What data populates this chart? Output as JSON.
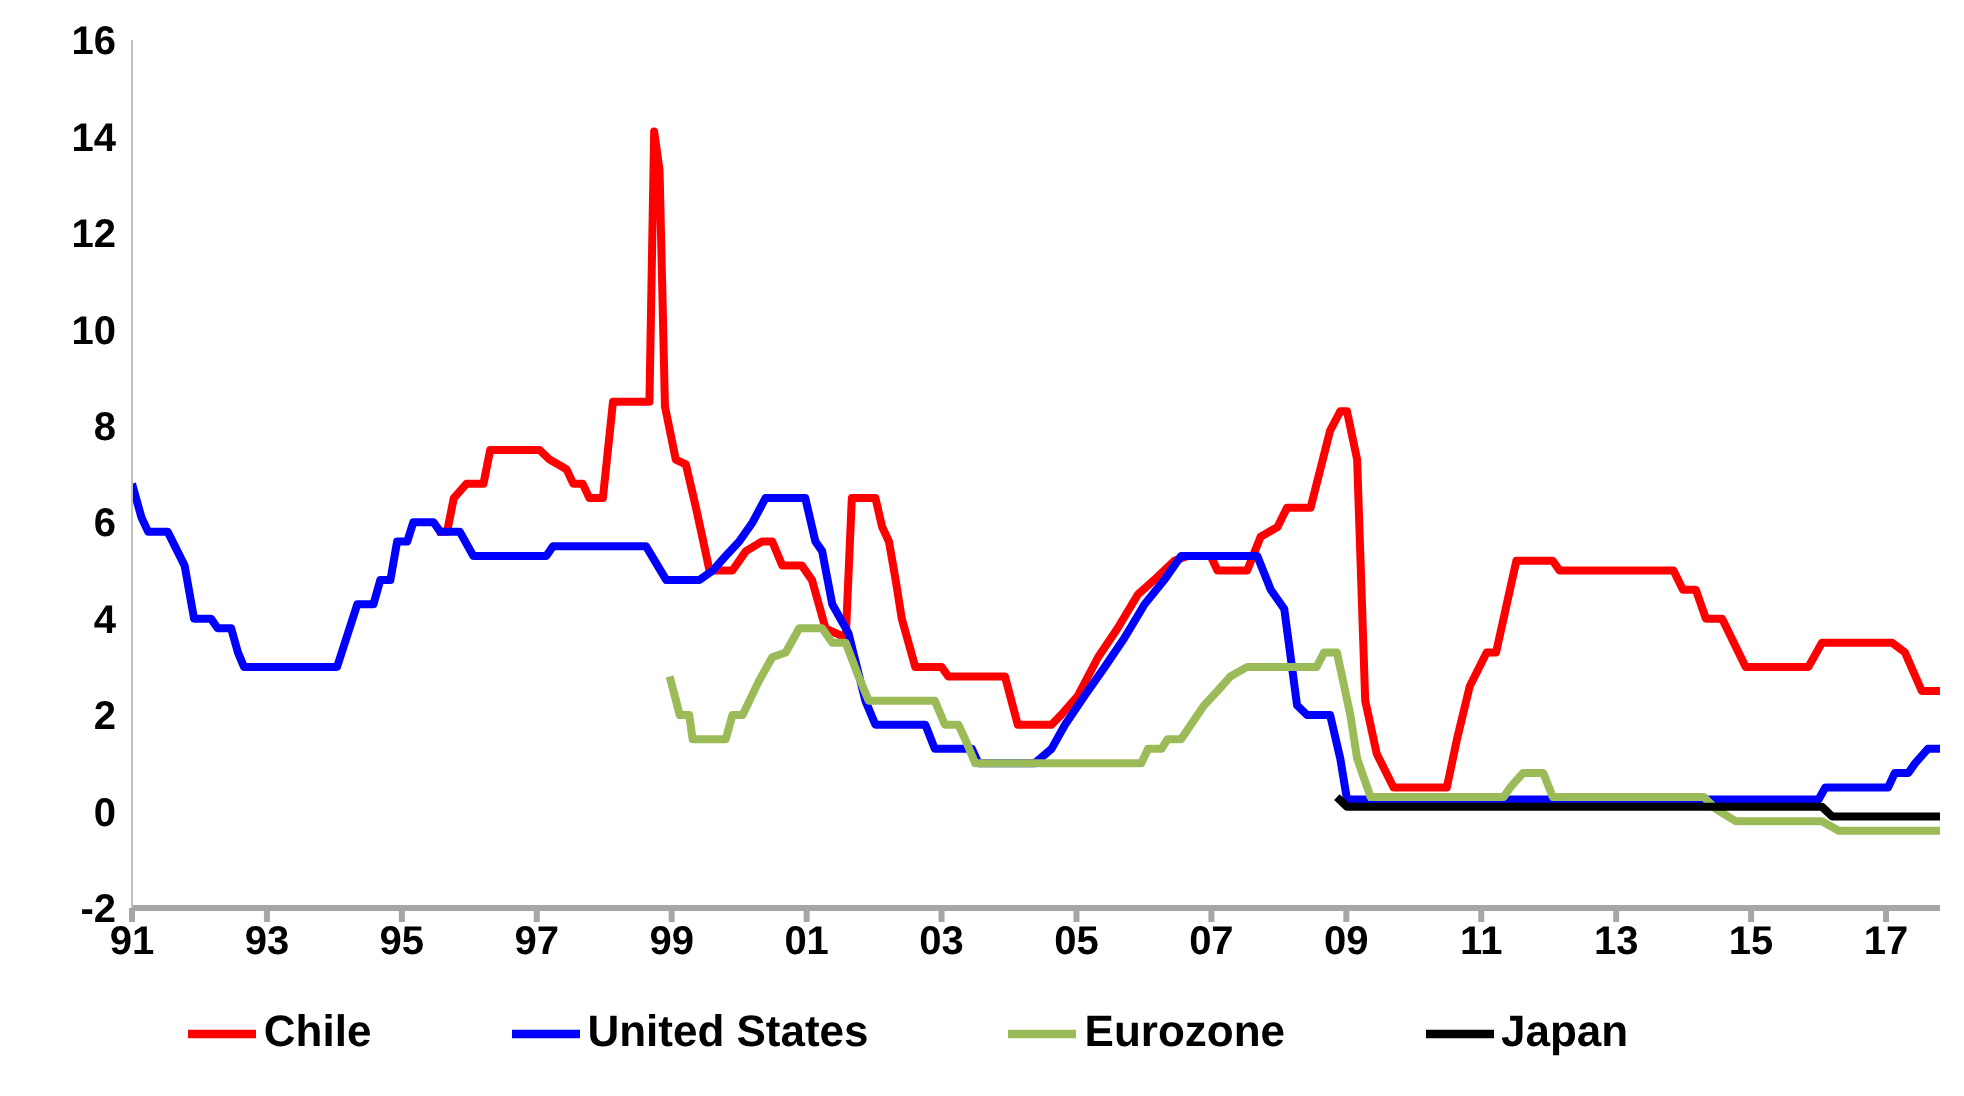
{
  "chart_data": {
    "type": "line",
    "xlim": [
      1991,
      2017.8
    ],
    "ylim": [
      -2,
      16
    ],
    "xticks": [
      {
        "value": 1991,
        "label": "91"
      },
      {
        "value": 1993,
        "label": "93"
      },
      {
        "value": 1995,
        "label": "95"
      },
      {
        "value": 1997,
        "label": "97"
      },
      {
        "value": 1999,
        "label": "99"
      },
      {
        "value": 2001,
        "label": "01"
      },
      {
        "value": 2003,
        "label": "03"
      },
      {
        "value": 2005,
        "label": "05"
      },
      {
        "value": 2007,
        "label": "07"
      },
      {
        "value": 2009,
        "label": "09"
      },
      {
        "value": 2011,
        "label": "11"
      },
      {
        "value": 2013,
        "label": "13"
      },
      {
        "value": 2015,
        "label": "15"
      },
      {
        "value": 2017,
        "label": "17"
      }
    ],
    "yticks": [
      -2,
      0,
      2,
      4,
      6,
      8,
      10,
      12,
      14,
      16
    ],
    "legend": "bottom",
    "marker": "none",
    "line_style": "solid",
    "series": [
      {
        "name": "Chile",
        "color": "#ff0000",
        "x": [
          1995.52,
          1995.67,
          1995.77,
          1995.96,
          1996.21,
          1996.31,
          1997.04,
          1997.19,
          1997.44,
          1997.54,
          1997.68,
          1997.78,
          1997.98,
          1998.13,
          1998.67,
          1998.74,
          1998.82,
          1998.9,
          1999.06,
          1999.21,
          1999.36,
          1999.56,
          1999.9,
          2000.1,
          2000.34,
          2000.49,
          2000.64,
          2000.93,
          2001.08,
          2001.28,
          2001.58,
          2001.67,
          2002.02,
          2002.12,
          2002.22,
          2002.32,
          2002.41,
          2002.61,
          2003.0,
          2003.1,
          2003.94,
          2004.13,
          2004.63,
          2004.77,
          2005.02,
          2005.32,
          2005.61,
          2005.91,
          2006.15,
          2006.45,
          2006.65,
          2006.99,
          2007.09,
          2007.53,
          2007.73,
          2007.98,
          2008.12,
          2008.47,
          2008.76,
          2008.91,
          2009.01,
          2009.16,
          2009.28,
          2009.45,
          2009.7,
          2010.49,
          2010.64,
          2010.83,
          2011.08,
          2011.22,
          2011.52,
          2012.06,
          2012.16,
          2013.85,
          2013.99,
          2014.18,
          2014.33,
          2014.57,
          2014.92,
          2015.85,
          2016.05,
          2017.09,
          2017.28,
          2017.53,
          2017.8
        ],
        "values": [
          5.8,
          5.8,
          6.5,
          6.8,
          6.8,
          7.5,
          7.5,
          7.3,
          7.1,
          6.8,
          6.8,
          6.5,
          6.5,
          8.5,
          8.5,
          14.1,
          13.3,
          8.4,
          7.3,
          7.2,
          6.3,
          5.0,
          5.0,
          5.4,
          5.6,
          5.6,
          5.1,
          5.1,
          4.8,
          3.8,
          3.6,
          6.5,
          6.5,
          5.9,
          5.6,
          4.8,
          4.0,
          3.0,
          3.0,
          2.8,
          2.8,
          1.8,
          1.8,
          2.0,
          2.4,
          3.2,
          3.8,
          4.5,
          4.8,
          5.2,
          5.3,
          5.3,
          5.0,
          5.0,
          5.7,
          5.9,
          6.3,
          6.3,
          7.9,
          8.3,
          8.3,
          7.3,
          2.3,
          1.2,
          0.5,
          0.5,
          1.5,
          2.6,
          3.3,
          3.3,
          5.2,
          5.2,
          5.0,
          5.0,
          4.6,
          4.6,
          4.0,
          4.0,
          3.0,
          3.0,
          3.5,
          3.5,
          3.3,
          2.5,
          2.5
        ]
      },
      {
        "name": "United States",
        "color": "#0000ff",
        "x": [
          1991.0,
          1991.14,
          1991.24,
          1991.53,
          1991.78,
          1991.92,
          1992.17,
          1992.27,
          1992.47,
          1992.57,
          1992.66,
          1994.04,
          1994.34,
          1994.58,
          1994.68,
          1994.83,
          1994.93,
          1995.08,
          1995.17,
          1995.47,
          1995.57,
          1995.86,
          1996.06,
          1997.14,
          1997.24,
          1998.62,
          1998.92,
          1999.41,
          1999.61,
          1999.8,
          2000.0,
          2000.2,
          2000.39,
          2000.98,
          2001.13,
          2001.23,
          2001.38,
          2001.62,
          2001.87,
          2002.02,
          2002.76,
          2002.9,
          2003.45,
          2003.55,
          2004.38,
          2004.63,
          2004.83,
          2005.12,
          2005.42,
          2005.71,
          2006.01,
          2006.3,
          2006.55,
          2007.68,
          2007.88,
          2008.08,
          2008.27,
          2008.42,
          2008.76,
          2008.91,
          2009.01,
          2016.0,
          2016.1,
          2017.03,
          2017.13,
          2017.33,
          2017.43,
          2017.62,
          2017.8
        ],
        "values": [
          6.8,
          6.1,
          5.8,
          5.8,
          5.1,
          4.0,
          4.0,
          3.8,
          3.8,
          3.3,
          3.0,
          3.0,
          4.3,
          4.3,
          4.8,
          4.8,
          5.6,
          5.6,
          6.0,
          6.0,
          5.8,
          5.8,
          5.3,
          5.3,
          5.5,
          5.5,
          4.8,
          4.8,
          5.0,
          5.3,
          5.6,
          6.0,
          6.5,
          6.5,
          5.6,
          5.4,
          4.3,
          3.7,
          2.3,
          1.8,
          1.8,
          1.3,
          1.3,
          1.0,
          1.0,
          1.3,
          1.8,
          2.4,
          3.0,
          3.6,
          4.3,
          4.8,
          5.3,
          5.3,
          4.6,
          4.2,
          2.2,
          2.0,
          2.0,
          1.1,
          0.25,
          0.25,
          0.5,
          0.5,
          0.8,
          0.8,
          1.0,
          1.3,
          1.3
        ]
      },
      {
        "name": "Eurozone",
        "color": "#9bbb59",
        "x": [
          1998.97,
          1999.12,
          1999.26,
          1999.31,
          1999.8,
          1999.9,
          2000.05,
          2000.29,
          2000.49,
          2000.69,
          2000.89,
          2001.23,
          2001.38,
          2001.58,
          2001.77,
          2001.92,
          2002.9,
          2003.05,
          2003.25,
          2003.35,
          2003.5,
          2005.96,
          2006.06,
          2006.26,
          2006.35,
          2006.55,
          2006.89,
          2007.09,
          2007.28,
          2007.53,
          2008.56,
          2008.67,
          2008.86,
          2009.06,
          2009.16,
          2009.36,
          2011.33,
          2011.43,
          2011.62,
          2011.92,
          2012.06,
          2014.3,
          2014.48,
          2014.77,
          2016.05,
          2016.3,
          2017.8
        ],
        "values": [
          2.8,
          2.0,
          2.0,
          1.5,
          1.5,
          2.0,
          2.0,
          2.7,
          3.2,
          3.3,
          3.8,
          3.8,
          3.5,
          3.5,
          2.8,
          2.3,
          2.3,
          1.8,
          1.8,
          1.5,
          1.0,
          1.0,
          1.3,
          1.3,
          1.5,
          1.5,
          2.2,
          2.5,
          2.8,
          3.0,
          3.0,
          3.3,
          3.3,
          2.0,
          1.1,
          0.3,
          0.3,
          0.5,
          0.8,
          0.8,
          0.3,
          0.3,
          0.05,
          -0.2,
          -0.2,
          -0.4,
          -0.4
        ]
      },
      {
        "name": "Japan",
        "color": "#000000",
        "x": [
          2008.86,
          2009.01,
          2016.05,
          2016.2,
          2017.8
        ],
        "values": [
          0.3,
          0.1,
          0.1,
          -0.1,
          -0.1
        ]
      }
    ]
  }
}
